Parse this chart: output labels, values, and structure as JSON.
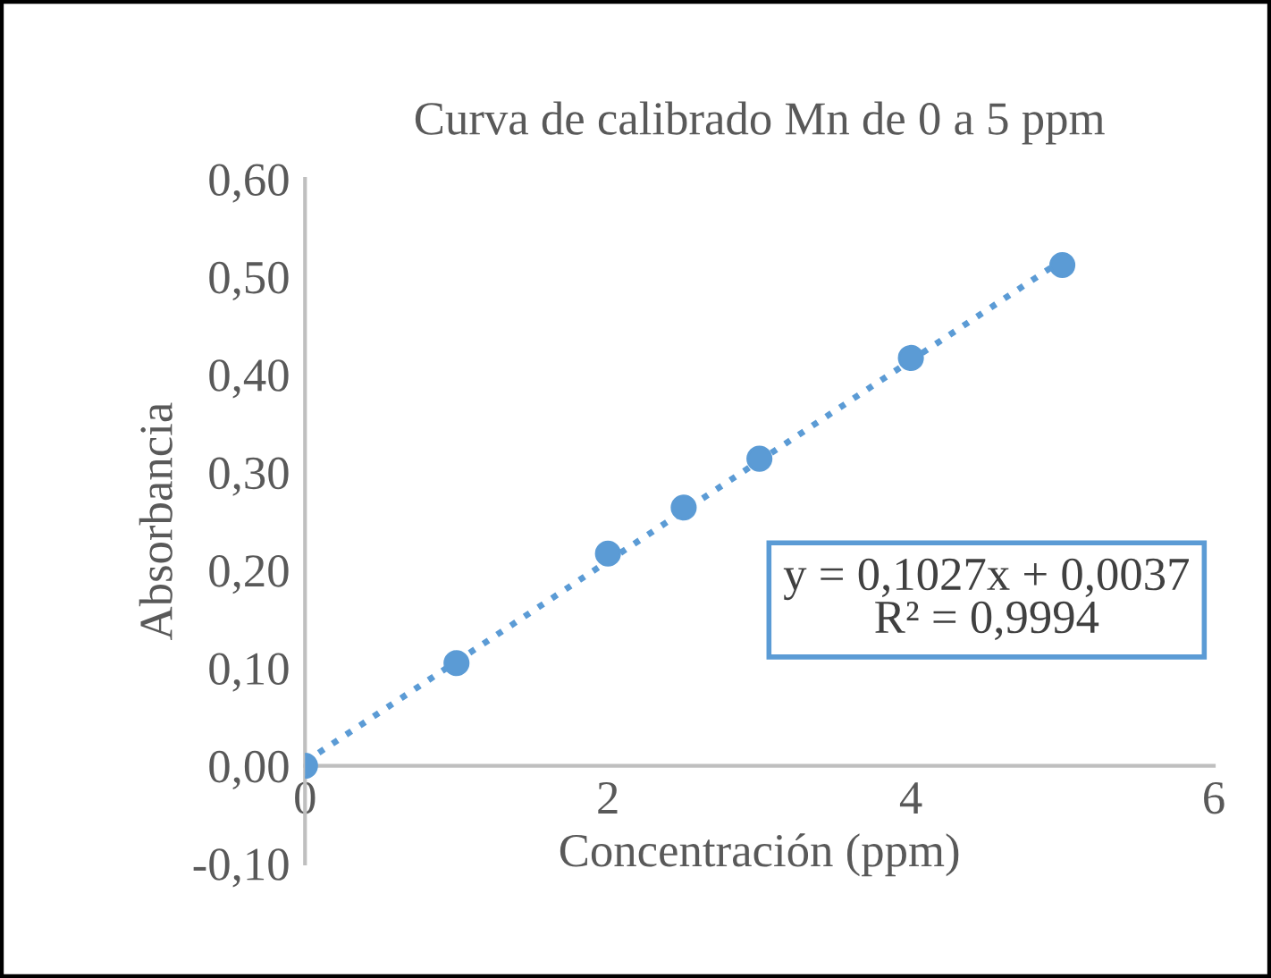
{
  "chart_data": {
    "type": "scatter",
    "title": "Curva de calibrado Mn de 0 a 5 ppm",
    "xlabel": "Concentración (ppm)",
    "ylabel": "Absorbancia",
    "x": [
      0,
      1,
      2,
      2.5,
      3,
      4,
      5
    ],
    "series": [
      {
        "color": "#5b9bd5",
        "values": [
          0.0,
          0.105,
          0.217,
          0.264,
          0.314,
          0.417,
          0.512
        ],
        "marker": "circle"
      },
      {
        "type": "line",
        "color": "#5b9bd5",
        "x": [
          0,
          5
        ],
        "values": [
          0.004,
          0.517
        ],
        "line_style": "dotted",
        "marker": "none"
      }
    ],
    "annotations": [
      "y = 0,1027x + 0,0037\nR² = 0,9994"
    ],
    "xlim": [
      0,
      6
    ],
    "ylim": [
      -0.1,
      0.6
    ],
    "xticks": [
      0,
      2,
      4,
      6
    ],
    "yticks": [
      {
        "value": -0.1,
        "label": "-0,10"
      },
      {
        "value": 0,
        "label": "0,00"
      },
      {
        "value": 0.1,
        "label": "0,10"
      },
      {
        "value": 0.2,
        "label": "0,20"
      },
      {
        "value": 0.3,
        "label": "0,30"
      },
      {
        "value": 0.4,
        "label": "0,40"
      },
      {
        "value": 0.5,
        "label": "0,50"
      },
      {
        "value": 0.6,
        "label": "0,60"
      }
    ],
    "grid": false,
    "legend": false
  }
}
